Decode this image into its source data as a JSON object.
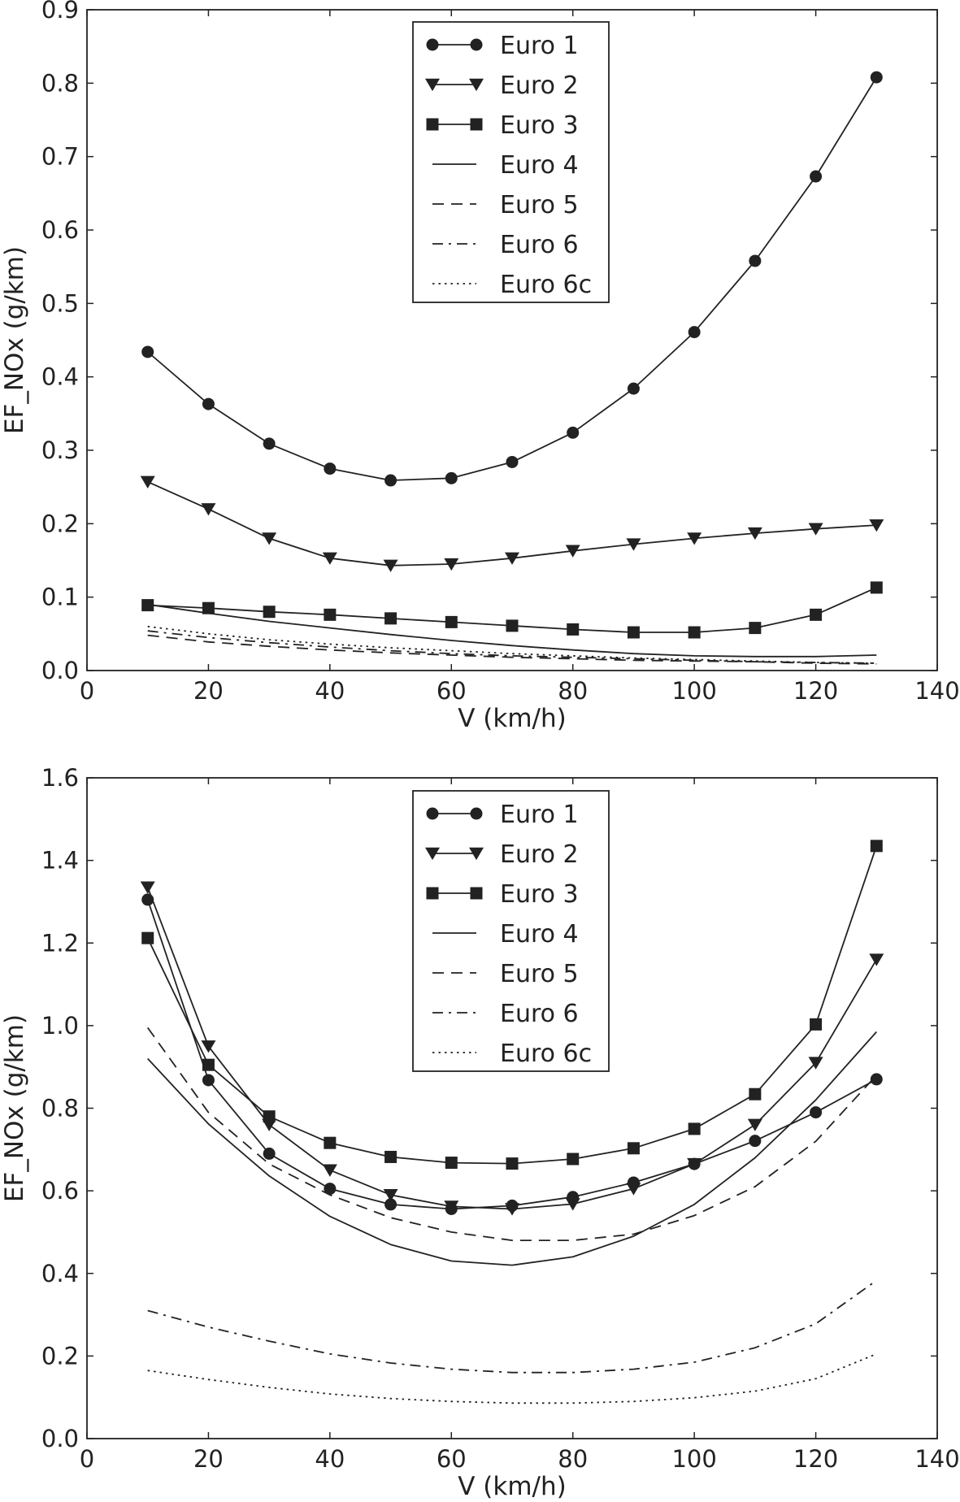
{
  "chart_data": [
    {
      "type": "line",
      "title": "",
      "xlabel": "V (km/h)",
      "ylabel": "EF_NOx (g/km)",
      "xlim": [
        0,
        140
      ],
      "ylim": [
        0,
        0.9
      ],
      "xticks": [
        "0",
        "20",
        "40",
        "60",
        "80",
        "100",
        "120",
        "140"
      ],
      "yticks": [
        "0.0",
        "0.1",
        "0.2",
        "0.3",
        "0.4",
        "0.5",
        "0.6",
        "0.7",
        "0.8",
        "0.9"
      ],
      "grid": false,
      "legend_position": "top-center",
      "x": [
        10,
        20,
        30,
        40,
        50,
        60,
        70,
        80,
        90,
        100,
        110,
        120,
        130
      ],
      "series": [
        {
          "name": "Euro 1",
          "style": "circle-marker-solid",
          "values": [
            0.434,
            0.363,
            0.309,
            0.275,
            0.259,
            0.262,
            0.284,
            0.324,
            0.384,
            0.461,
            0.558,
            0.673,
            0.808
          ]
        },
        {
          "name": "Euro 2",
          "style": "triangle-marker-solid",
          "values": [
            0.257,
            0.22,
            0.18,
            0.153,
            0.143,
            0.145,
            0.153,
            0.163,
            0.172,
            0.18,
            0.187,
            0.193,
            0.198
          ]
        },
        {
          "name": "Euro 3",
          "style": "square-marker-solid",
          "values": [
            0.089,
            0.085,
            0.08,
            0.076,
            0.071,
            0.066,
            0.061,
            0.056,
            0.052,
            0.052,
            0.058,
            0.076,
            0.113
          ]
        },
        {
          "name": "Euro 4",
          "style": "solid",
          "values": [
            0.09,
            0.078,
            0.067,
            0.058,
            0.049,
            0.041,
            0.034,
            0.028,
            0.023,
            0.02,
            0.019,
            0.019,
            0.021
          ]
        },
        {
          "name": "Euro 5",
          "style": "dashed",
          "values": [
            0.048,
            0.039,
            0.033,
            0.028,
            0.024,
            0.021,
            0.018,
            0.016,
            0.014,
            0.013,
            0.012,
            0.01,
            0.009
          ]
        },
        {
          "name": "Euro 6",
          "style": "dashdot",
          "values": [
            0.054,
            0.045,
            0.038,
            0.032,
            0.027,
            0.023,
            0.02,
            0.018,
            0.016,
            0.014,
            0.012,
            0.011,
            0.01
          ]
        },
        {
          "name": "Euro 6c",
          "style": "dotted",
          "values": [
            0.06,
            0.05,
            0.042,
            0.036,
            0.031,
            0.027,
            0.023,
            0.02,
            0.017,
            0.015,
            0.013,
            0.011,
            0.01
          ]
        }
      ]
    },
    {
      "type": "line",
      "title": "",
      "xlabel": "V (km/h)",
      "ylabel": "EF_NOx (g/km)",
      "xlim": [
        0,
        140
      ],
      "ylim": [
        0,
        1.6
      ],
      "xticks": [
        "0",
        "20",
        "40",
        "60",
        "80",
        "100",
        "120",
        "140"
      ],
      "yticks": [
        "0.0",
        "0.2",
        "0.4",
        "0.6",
        "0.8",
        "1.0",
        "1.2",
        "1.4",
        "1.6"
      ],
      "grid": false,
      "legend_position": "top-center",
      "x": [
        10,
        20,
        30,
        40,
        50,
        60,
        70,
        80,
        90,
        100,
        110,
        120,
        130
      ],
      "series": [
        {
          "name": "Euro 1",
          "style": "circle-marker-solid",
          "values": [
            1.305,
            0.868,
            0.69,
            0.605,
            0.567,
            0.556,
            0.564,
            0.585,
            0.62,
            0.665,
            0.721,
            0.79,
            0.87
          ]
        },
        {
          "name": "Euro 2",
          "style": "triangle-marker-solid",
          "values": [
            1.335,
            0.95,
            0.76,
            0.65,
            0.59,
            0.562,
            0.556,
            0.568,
            0.605,
            0.665,
            0.76,
            0.91,
            1.16
          ]
        },
        {
          "name": "Euro 3",
          "style": "square-marker-solid",
          "values": [
            1.212,
            0.905,
            0.78,
            0.716,
            0.682,
            0.668,
            0.666,
            0.677,
            0.703,
            0.75,
            0.834,
            1.003,
            1.435
          ]
        },
        {
          "name": "Euro 4",
          "style": "solid",
          "values": [
            0.92,
            0.762,
            0.636,
            0.538,
            0.47,
            0.43,
            0.42,
            0.44,
            0.49,
            0.567,
            0.68,
            0.82,
            0.985
          ]
        },
        {
          "name": "Euro 5",
          "style": "dashed",
          "values": [
            0.995,
            0.79,
            0.665,
            0.59,
            0.535,
            0.5,
            0.48,
            0.48,
            0.495,
            0.54,
            0.61,
            0.72,
            0.88
          ]
        },
        {
          "name": "Euro 6",
          "style": "dashdot",
          "values": [
            0.31,
            0.27,
            0.236,
            0.205,
            0.183,
            0.168,
            0.16,
            0.16,
            0.168,
            0.185,
            0.22,
            0.278,
            0.383
          ]
        },
        {
          "name": "Euro 6c",
          "style": "dotted",
          "values": [
            0.165,
            0.143,
            0.124,
            0.108,
            0.097,
            0.09,
            0.086,
            0.086,
            0.09,
            0.099,
            0.115,
            0.145,
            0.205
          ]
        }
      ]
    }
  ]
}
